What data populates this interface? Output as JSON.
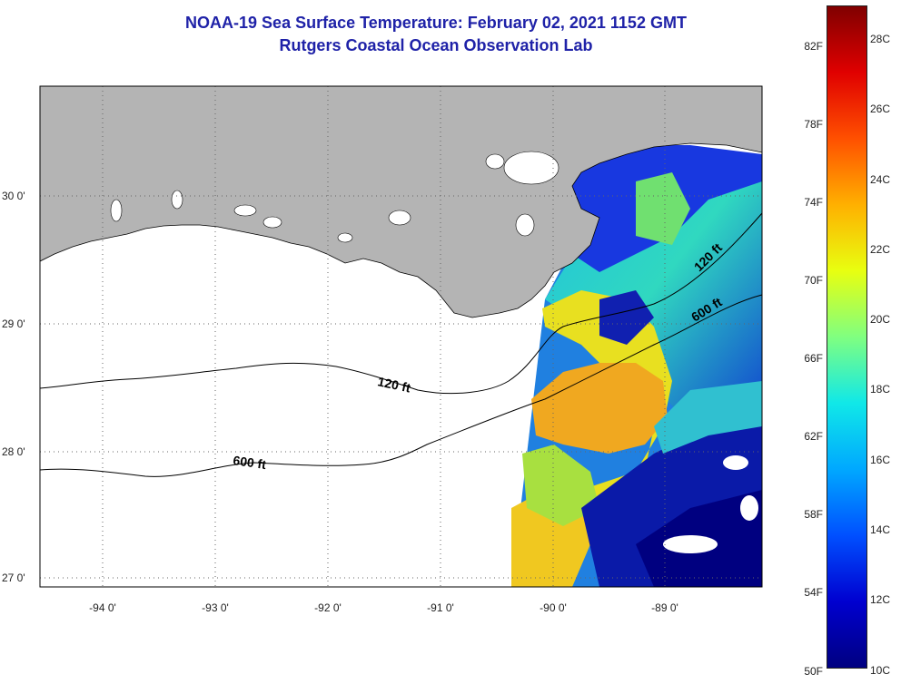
{
  "title": {
    "line1": "NOAA-19 Sea Surface Temperature:  February 02, 2021 1152 GMT",
    "line2": "Rutgers Coastal Ocean Observation Lab"
  },
  "map": {
    "land_color": "#b4b4b4",
    "water_no_data_color": "#ffffff",
    "lat_labels": [
      "30 0'",
      "29 0'",
      "28 0'",
      "27 0'"
    ],
    "lon_labels": [
      "-94 0'",
      "-93 0'",
      "-92 0'",
      "-91 0'",
      "-90 0'",
      "-89 0'"
    ],
    "contours": [
      {
        "label": "120 ft"
      },
      {
        "label": "600 ft"
      },
      {
        "label": "120 ft"
      },
      {
        "label": "600 ft"
      }
    ]
  },
  "colorbar": {
    "fahrenheit": [
      "82F",
      "78F",
      "74F",
      "70F",
      "66F",
      "62F",
      "58F",
      "54F",
      "50F"
    ],
    "celsius": [
      "28C",
      "26C",
      "24C",
      "22C",
      "20C",
      "18C",
      "16C",
      "14C",
      "12C",
      "10C"
    ],
    "colors": [
      "#000080",
      "#0000d0",
      "#0050ff",
      "#00a8ff",
      "#10e8e8",
      "#80ff80",
      "#e8ff10",
      "#ffb000",
      "#ff5000",
      "#e00000",
      "#800000"
    ]
  }
}
